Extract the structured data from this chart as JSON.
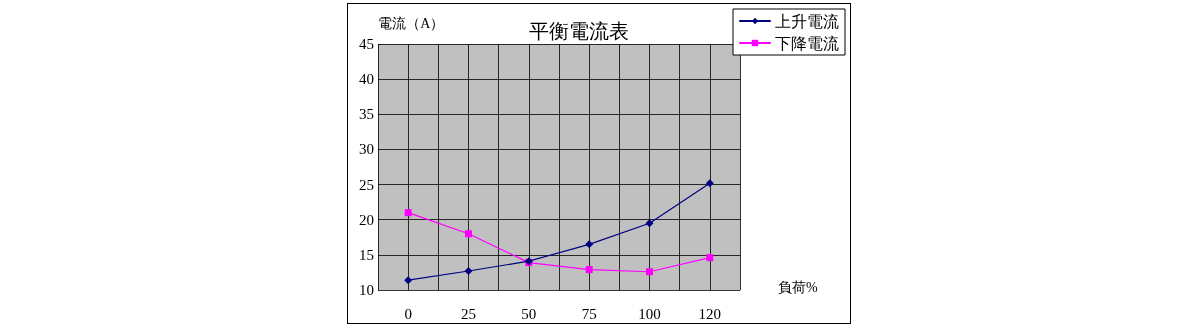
{
  "chart_data": {
    "type": "line",
    "title": "平衡電流表",
    "xlabel": "負荷%",
    "ylabel": "電流（A）",
    "categories": [
      "0",
      "25",
      "50",
      "75",
      "100",
      "120"
    ],
    "series": [
      {
        "name": "上升電流",
        "color": "#000080",
        "marker": "diamond",
        "values": [
          11.4,
          12.7,
          14.1,
          16.5,
          19.5,
          25.2
        ]
      },
      {
        "name": "下降電流",
        "color": "#ff00ff",
        "marker": "square",
        "values": [
          21,
          18,
          13.9,
          12.9,
          12.6,
          14.6
        ]
      }
    ],
    "ylim": [
      10,
      45
    ],
    "yticks": [
      10,
      15,
      20,
      25,
      30,
      35,
      40,
      45
    ],
    "grid": true,
    "legend": "top right",
    "line_style": "solid"
  }
}
